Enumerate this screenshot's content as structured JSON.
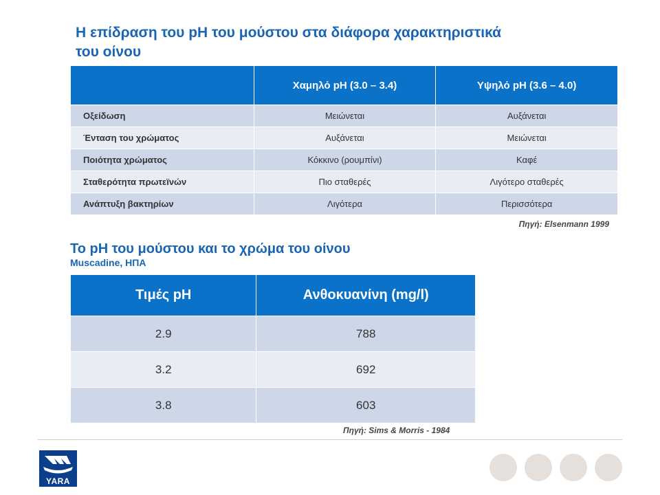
{
  "title": {
    "line1": "Η επίδραση του pH του μούστου στα διάφορα χαρακτηριστικά",
    "line2": "του οίνου"
  },
  "table1": {
    "headers": [
      "",
      "Χαμηλό pH (3.0 – 3.4)",
      "Υψηλό pH (3.6 – 4.0)"
    ],
    "rows": [
      [
        "Οξείδωση",
        "Μειώνεται",
        "Αυξάνεται"
      ],
      [
        "Ένταση του χρώματος",
        "Αυξάνεται",
        "Μειώνεται"
      ],
      [
        "Ποιότητα χρώματος",
        "Κόκκινο (ρουμπίνι)",
        "Καφέ"
      ],
      [
        "Σταθερότητα πρωτεϊνών",
        "Πιο σταθερές",
        "Λιγότερο σταθερές"
      ],
      [
        "Ανάπτυξη βακτηρίων",
        "Λιγότερα",
        "Περισσότερα"
      ]
    ],
    "source": "Πηγή: Elsenmann 1999"
  },
  "section2": {
    "title": "Το pH του μούστου και το χρώμα του οίνου",
    "subtitle": "Muscadine, ΗΠΑ"
  },
  "table2": {
    "headers": [
      "Τιμές pH",
      "Ανθοκυανίνη (mg/l)"
    ],
    "rows": [
      [
        "2.9",
        "788"
      ],
      [
        "3.2",
        "692"
      ],
      [
        "3.8",
        "603"
      ]
    ],
    "source": "Πηγή: Sims & Morris - 1984"
  },
  "logo": {
    "text": "YARA",
    "icon": "yara-ship-logo-icon",
    "color": "#0b3f8c"
  },
  "colors": {
    "accent": "#1a64b4",
    "header_bg": "#0b72c9",
    "row_dark": "#cdd7e8",
    "row_light": "#e7ecf5",
    "dot": "#e5e0dc"
  }
}
